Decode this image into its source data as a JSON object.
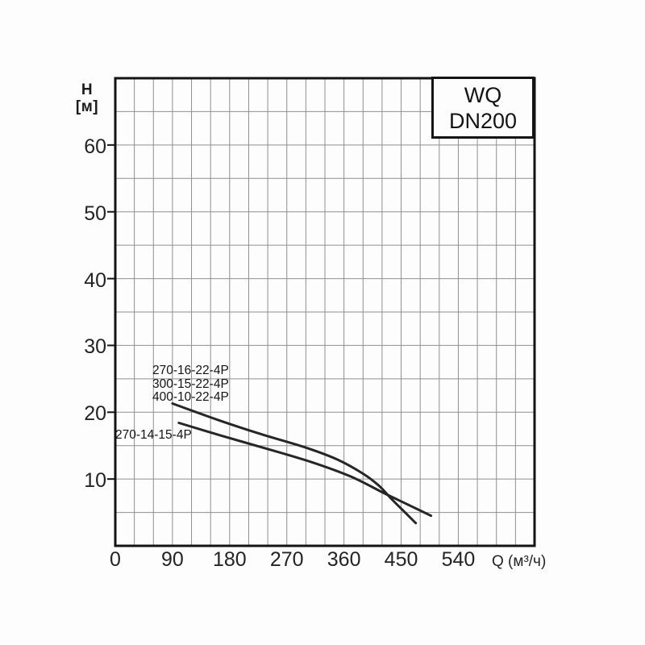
{
  "title_box": {
    "line1": "WQ",
    "line2": "DN200"
  },
  "axis": {
    "y_label_line1": "H",
    "y_label_line2": "[м]",
    "x_label": "Q (м³/ч)"
  },
  "colors": {
    "curve": "#262626",
    "grid": "#8f8f8f",
    "frame": "#141414",
    "background": "#fdfdfd"
  },
  "chart_data": {
    "type": "line",
    "title": "WQ DN200",
    "xlabel": "Q (м³/ч)",
    "ylabel": "H [м]",
    "xlim": [
      0,
      660
    ],
    "ylim": [
      0,
      70
    ],
    "x_major_ticks": [
      0,
      90,
      180,
      270,
      360,
      450,
      540
    ],
    "y_major_ticks": [
      10,
      20,
      30,
      40,
      50,
      60
    ],
    "x_minor_step": 30,
    "y_minor_step": 5,
    "grid": true,
    "legend_position": "inline-labels",
    "series": [
      {
        "name": "270-16-22-4P / 300-15-22-4P / 400-10-22-4P",
        "labels": [
          "270-16-22-4P",
          "300-15-22-4P",
          "400-10-22-4P"
        ],
        "points": [
          [
            90,
            21.3
          ],
          [
            160,
            18.9
          ],
          [
            230,
            16.7
          ],
          [
            300,
            14.7
          ],
          [
            350,
            12.9
          ],
          [
            390,
            10.8
          ],
          [
            415,
            9.0
          ],
          [
            435,
            7.0
          ],
          [
            455,
            5.1
          ],
          [
            473,
            3.4
          ]
        ]
      },
      {
        "name": "270-14-15-4P",
        "labels": [
          "270-14-15-4P"
        ],
        "points": [
          [
            100,
            18.4
          ],
          [
            170,
            16.4
          ],
          [
            240,
            14.5
          ],
          [
            310,
            12.5
          ],
          [
            370,
            10.4
          ],
          [
            425,
            7.8
          ],
          [
            460,
            6.2
          ],
          [
            497,
            4.5
          ]
        ]
      }
    ]
  }
}
